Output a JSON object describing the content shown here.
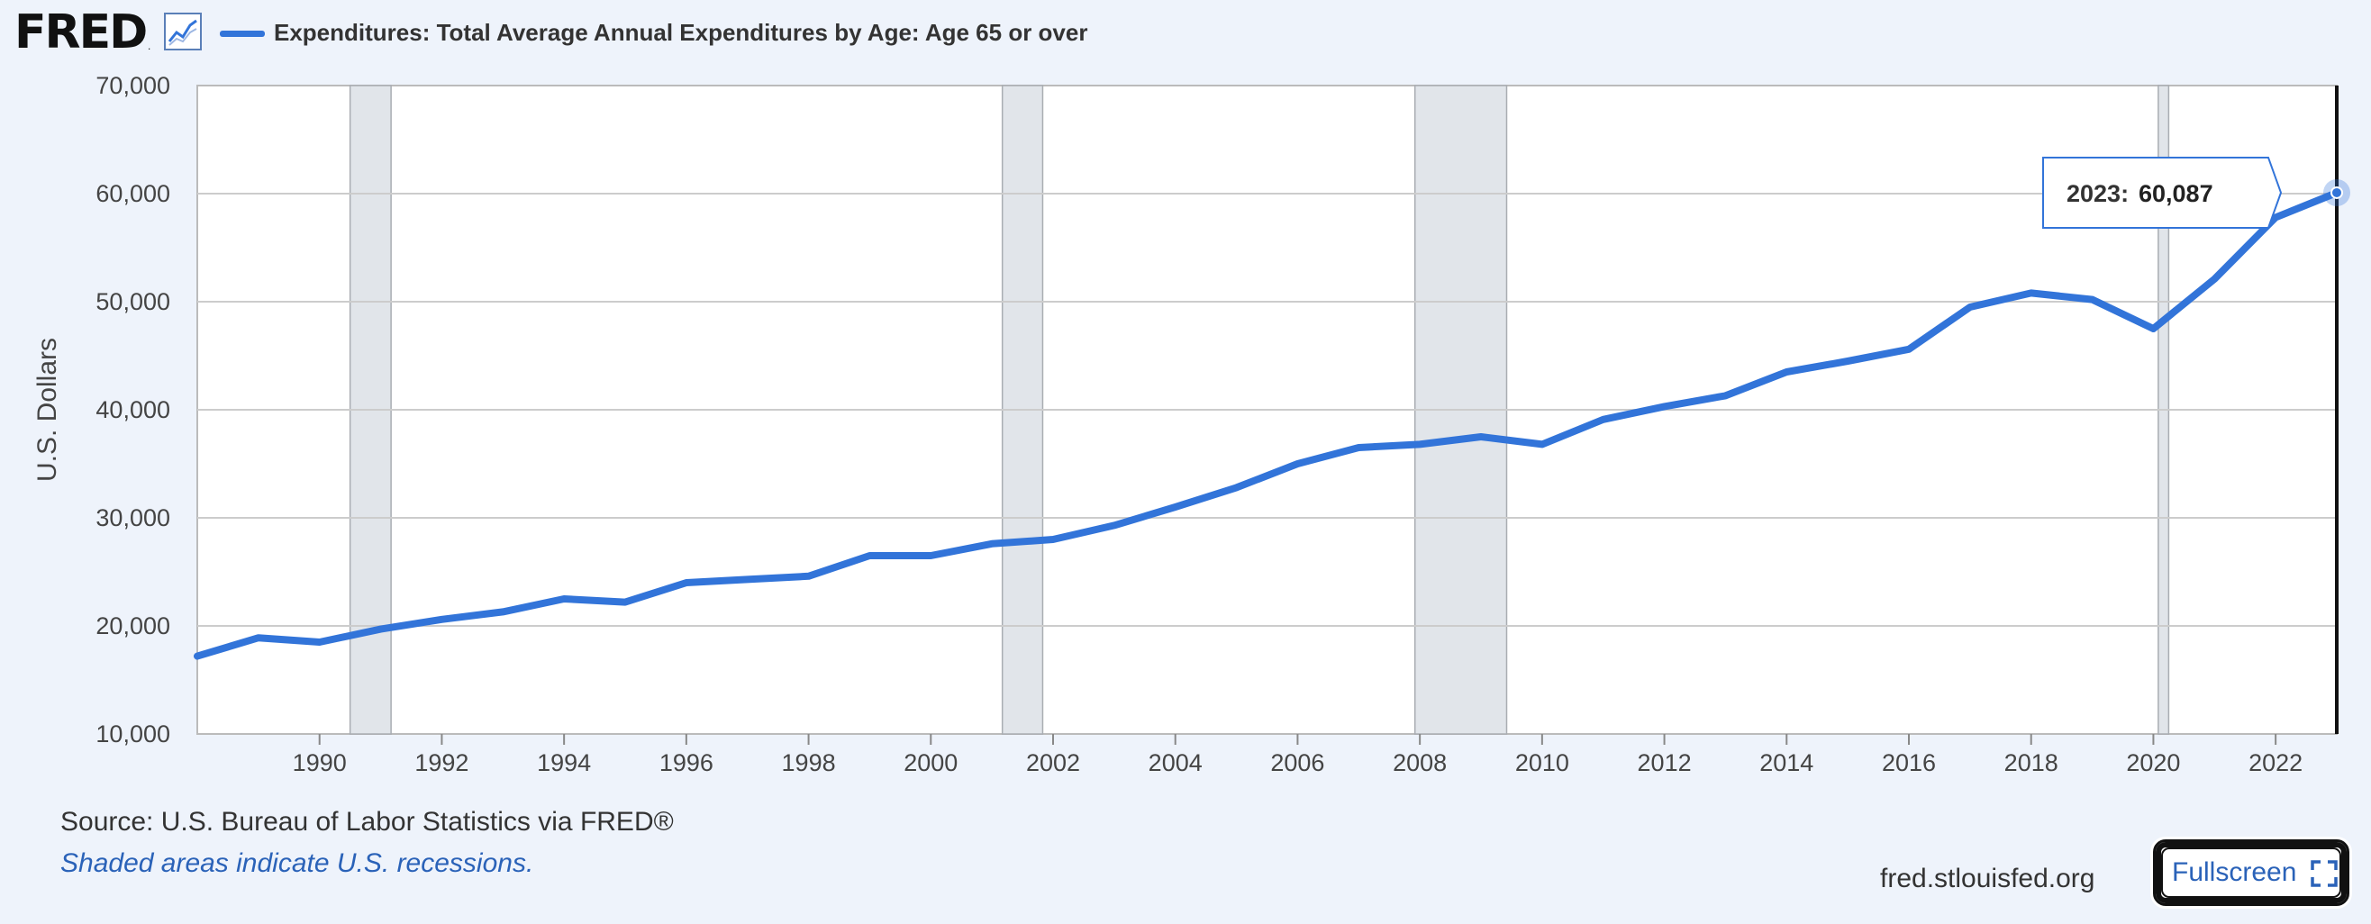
{
  "header": {
    "logo_text": "FRED",
    "logo_reg": ".",
    "series_title": "Expenditures: Total Average Annual Expenditures by Age: Age 65 or over"
  },
  "colors": {
    "series": "#3274d9",
    "recession": "#e1e5ea",
    "plot_bg": "#ffffff",
    "page_bg": "#eef3fb"
  },
  "icons": {
    "graph": "line-chart-icon",
    "fullscreen": "expand-icon"
  },
  "chart_data": {
    "type": "line",
    "title": "Expenditures: Total Average Annual Expenditures by Age: Age 65 or over",
    "ylabel": "U.S. Dollars",
    "xlabel": "",
    "xlim": [
      1988,
      2023
    ],
    "ylim": [
      10000,
      70000
    ],
    "yticks": [
      10000,
      20000,
      30000,
      40000,
      50000,
      60000,
      70000
    ],
    "ytick_labels": [
      "10,000",
      "20,000",
      "30,000",
      "40,000",
      "50,000",
      "60,000",
      "70,000"
    ],
    "xticks": [
      1990,
      1992,
      1994,
      1996,
      1998,
      2000,
      2002,
      2004,
      2006,
      2008,
      2010,
      2012,
      2014,
      2016,
      2018,
      2020,
      2022
    ],
    "xtick_labels": [
      "1990",
      "1992",
      "1994",
      "1996",
      "1998",
      "2000",
      "2002",
      "2004",
      "2006",
      "2008",
      "2010",
      "2012",
      "2014",
      "2016",
      "2018",
      "2020",
      "2022"
    ],
    "grid": true,
    "recessions": [
      [
        1990.5,
        1991.17
      ],
      [
        2001.17,
        2001.83
      ],
      [
        2007.92,
        2009.42
      ],
      [
        2020.08,
        2020.25
      ]
    ],
    "series": [
      {
        "name": "Expenditures: Total Average Annual Expenditures by Age: Age 65 or over",
        "x": [
          1988,
          1989,
          1990,
          1991,
          1992,
          1993,
          1994,
          1995,
          1996,
          1997,
          1998,
          1999,
          2000,
          2001,
          2002,
          2003,
          2004,
          2005,
          2006,
          2007,
          2008,
          2009,
          2010,
          2011,
          2012,
          2013,
          2014,
          2015,
          2016,
          2017,
          2018,
          2019,
          2020,
          2021,
          2022,
          2023
        ],
        "y": [
          17200,
          18900,
          18500,
          19700,
          20600,
          21300,
          22500,
          22200,
          24000,
          24300,
          24600,
          26500,
          26500,
          27600,
          28000,
          29300,
          31000,
          32800,
          35000,
          36500,
          36800,
          37500,
          36800,
          39100,
          40300,
          41300,
          43500,
          44500,
          45600,
          49500,
          50800,
          50200,
          47500,
          52100,
          57800,
          60087
        ]
      }
    ],
    "tooltip": {
      "label": "2023:",
      "value": "60,087"
    }
  },
  "footer": {
    "source": "Source: U.S. Bureau of Labor Statistics via FRED®",
    "note": "Shaded areas indicate U.S. recessions.",
    "site": "fred.stlouisfed.org",
    "fullscreen_label": "Fullscreen"
  }
}
